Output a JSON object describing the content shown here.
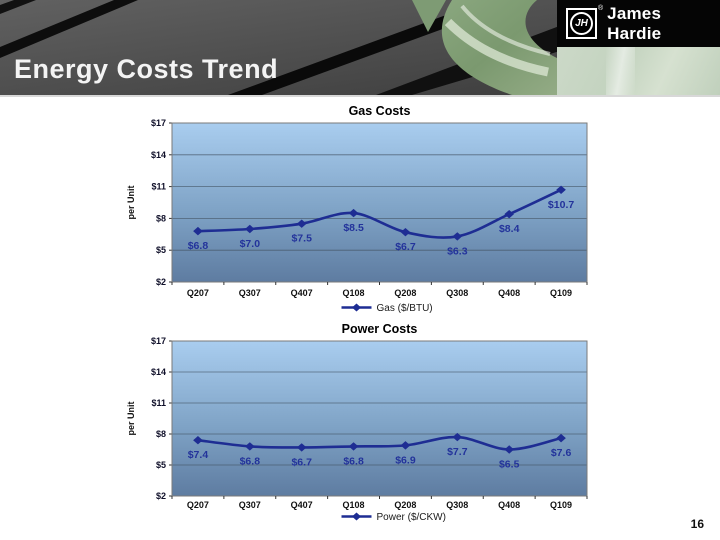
{
  "slide": {
    "page_number": "16"
  },
  "header": {
    "title": "Energy Costs Trend",
    "brand_name": "James Hardie",
    "brand_monogram": "JH",
    "registered_symbol": "®"
  },
  "colors": {
    "accent_navy": "#1E2D93",
    "data_label": "#23339B",
    "plot_gradient_top": "#A9CDEF",
    "plot_gradient_mid": "#7FA3C6",
    "plot_gradient_bottom": "#5E7CA1",
    "plot_border": "#7A7A7A",
    "gridline": "#41505F",
    "axis_text": "#10102A",
    "title_text": "#000000",
    "legend_text": "#1a1a1a"
  },
  "chart_data": [
    {
      "type": "line",
      "title": "Gas Costs",
      "ylabel": "per Unit",
      "categories": [
        "Q207",
        "Q307",
        "Q407",
        "Q108",
        "Q208",
        "Q308",
        "Q408",
        "Q109"
      ],
      "series": [
        {
          "name": "Gas ($/BTU)",
          "values": [
            6.8,
            7.0,
            7.5,
            8.5,
            6.7,
            6.3,
            8.4,
            10.7
          ]
        }
      ],
      "data_labels": [
        "$6.8",
        "$7.0",
        "$7.5",
        "$8.5",
        "$6.7",
        "$6.3",
        "$8.4",
        "$10.7"
      ],
      "ylim": [
        2,
        17
      ],
      "yticks": [
        2,
        5,
        8,
        11,
        14,
        17
      ],
      "ytick_labels": [
        "$2",
        "$5",
        "$8",
        "$11",
        "$14",
        "$17"
      ],
      "grid": true,
      "legend_position": "bottom"
    },
    {
      "type": "line",
      "title": "Power Costs",
      "ylabel": "per Unit",
      "categories": [
        "Q207",
        "Q307",
        "Q407",
        "Q108",
        "Q208",
        "Q308",
        "Q408",
        "Q109"
      ],
      "series": [
        {
          "name": "Power ($/CKW)",
          "values": [
            7.4,
            6.8,
            6.7,
            6.8,
            6.9,
            7.7,
            6.5,
            7.6
          ]
        }
      ],
      "data_labels": [
        "$7.4",
        "$6.8",
        "$6.7",
        "$6.8",
        "$6.9",
        "$7.7",
        "$6.5",
        "$7.6"
      ],
      "ylim": [
        2,
        17
      ],
      "yticks": [
        2,
        5,
        8,
        11,
        14,
        17
      ],
      "ytick_labels": [
        "$2",
        "$5",
        "$8",
        "$11",
        "$14",
        "$17"
      ],
      "grid": true,
      "legend_position": "bottom"
    }
  ]
}
